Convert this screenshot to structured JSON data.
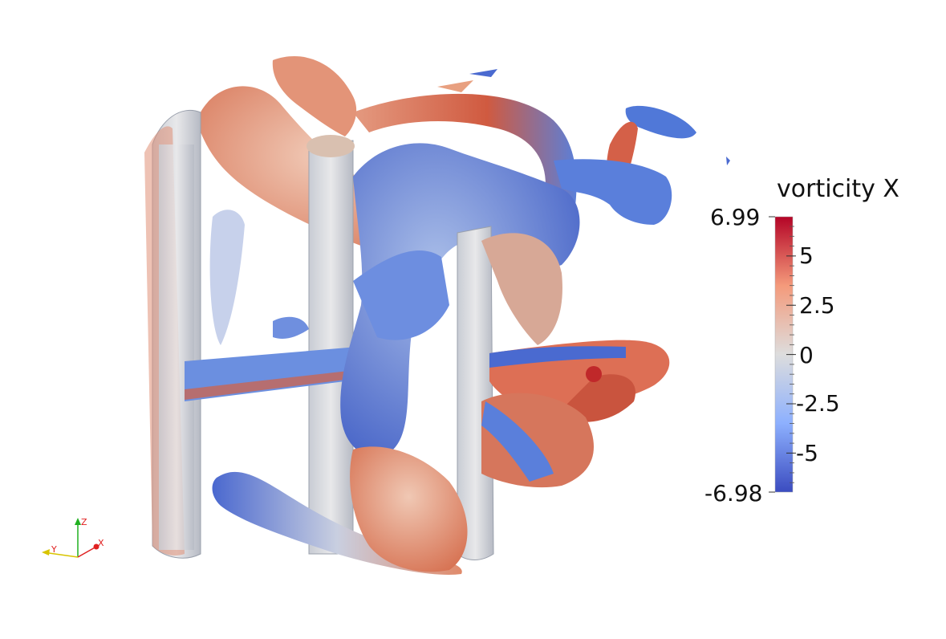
{
  "legend": {
    "title": "vorticity X",
    "max_label": "6.99",
    "min_label": "-6.98",
    "ticks": [
      {
        "label": "5",
        "value": 5
      },
      {
        "label": "2.5",
        "value": 2.5
      },
      {
        "label": "0",
        "value": 0
      },
      {
        "label": "-2.5",
        "value": -2.5
      },
      {
        "label": "-5",
        "value": -5
      }
    ],
    "range": [
      -6.98,
      6.99
    ],
    "colors": {
      "high": "#b40426",
      "mid": "#dddddd",
      "low": "#3b4cc0"
    }
  },
  "axes_triad": {
    "x_label": "X",
    "y_label": "Y",
    "z_label": "Z",
    "colors": {
      "x": "#e02020",
      "y": "#d8c400",
      "z": "#20b020"
    }
  },
  "scene": {
    "background": "#ffffff"
  }
}
